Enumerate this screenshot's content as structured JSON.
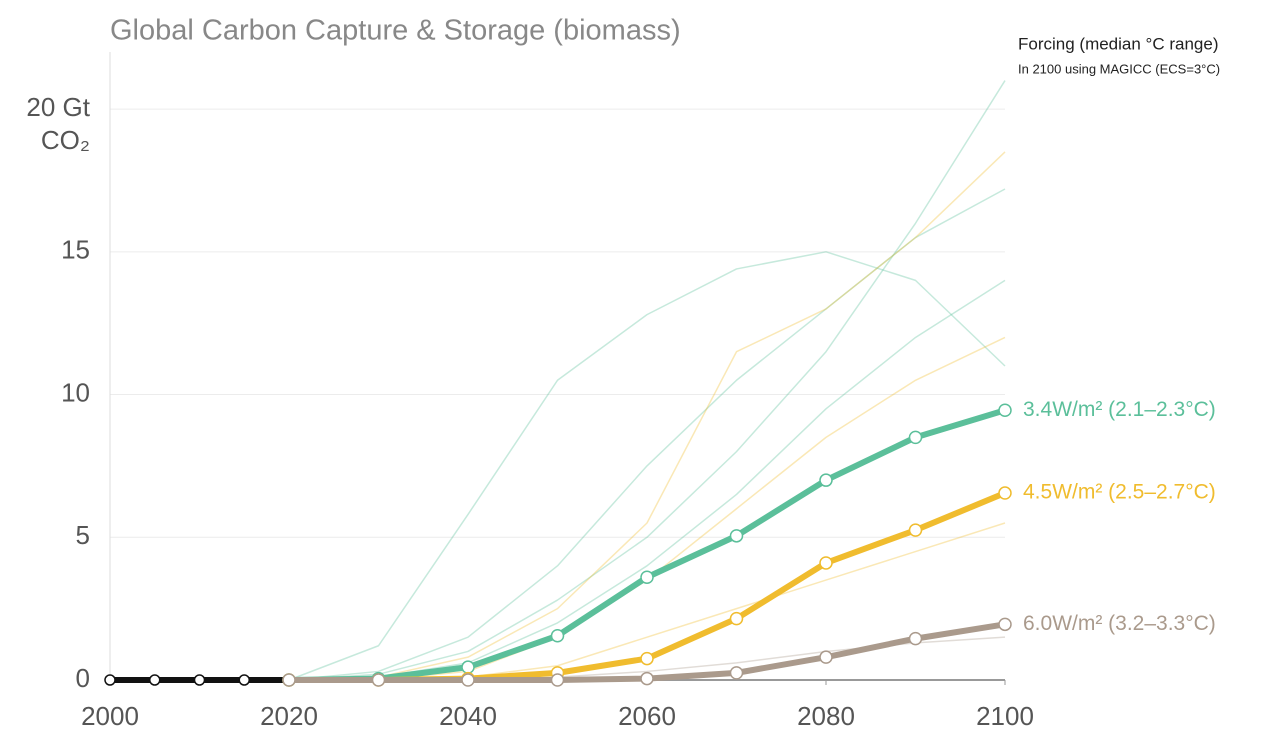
{
  "chart_data": {
    "type": "line",
    "title": "Global Carbon Capture & Storage (biomass)",
    "ylabel": "CO₂",
    "legend_title": "Forcing (median °C range)",
    "legend_subtitle": "In 2100 using MAGICC (ECS=3°C)",
    "x": [
      2000,
      2005,
      2010,
      2015,
      2020,
      2030,
      2040,
      2050,
      2060,
      2070,
      2080,
      2090,
      2100
    ],
    "xlim": [
      2000,
      2100
    ],
    "xticks": [
      2000,
      2020,
      2040,
      2060,
      2080,
      2100
    ],
    "ylim": [
      0,
      22
    ],
    "yticks": [
      0,
      5,
      10,
      15,
      {
        "value": 20,
        "label": "20 Gt"
      }
    ],
    "grid": true,
    "history": {
      "color": "#111111",
      "values": [
        0,
        0,
        0,
        0,
        0,
        null,
        null,
        null,
        null,
        null,
        null,
        null,
        null
      ]
    },
    "series": [
      {
        "name": "3.4W/m² (2.1–2.3°C)",
        "color": "#5bbf9a",
        "values": [
          null,
          null,
          null,
          null,
          0,
          0.05,
          0.45,
          1.55,
          3.6,
          5.05,
          7.0,
          8.5,
          9.45
        ]
      },
      {
        "name": "4.5W/m² (2.5–2.7°C)",
        "color": "#f0bc2e",
        "values": [
          null,
          null,
          null,
          null,
          0,
          0,
          0.05,
          0.25,
          0.75,
          2.15,
          4.1,
          5.25,
          6.55
        ]
      },
      {
        "name": "6.0W/m² (3.2–3.3°C)",
        "color": "#aa9a8c",
        "values": [
          null,
          null,
          null,
          null,
          0,
          0,
          0,
          0,
          0.05,
          0.25,
          0.8,
          1.45,
          1.95
        ]
      }
    ],
    "scenarios": [
      {
        "color": "#5bbf9a",
        "values": [
          null,
          null,
          null,
          null,
          0,
          1.2,
          5.8,
          10.5,
          12.8,
          14.4,
          15.0,
          14.0,
          11.0
        ]
      },
      {
        "color": "#5bbf9a",
        "values": [
          null,
          null,
          null,
          null,
          0,
          0.3,
          1.5,
          4.0,
          7.5,
          10.5,
          13.0,
          15.5,
          17.2
        ]
      },
      {
        "color": "#5bbf9a",
        "values": [
          null,
          null,
          null,
          null,
          0,
          0.2,
          1.0,
          2.8,
          5.0,
          8.0,
          11.5,
          16.0,
          21.0
        ]
      },
      {
        "color": "#f0bc2e",
        "values": [
          null,
          null,
          null,
          null,
          0,
          0.1,
          0.8,
          2.5,
          5.5,
          11.5,
          13.0,
          15.5,
          18.5
        ]
      },
      {
        "color": "#f0bc2e",
        "values": [
          null,
          null,
          null,
          null,
          0,
          0,
          0.3,
          1.5,
          3.5,
          6.0,
          8.5,
          10.5,
          12.0
        ]
      },
      {
        "color": "#5bbf9a",
        "values": [
          null,
          null,
          null,
          null,
          0,
          0.1,
          0.6,
          2.0,
          4.0,
          6.5,
          9.5,
          12.0,
          14.0
        ]
      },
      {
        "color": "#f0bc2e",
        "values": [
          null,
          null,
          null,
          null,
          0,
          0,
          0.1,
          0.5,
          1.5,
          2.5,
          3.5,
          4.5,
          5.5
        ]
      },
      {
        "color": "#aa9a8c",
        "values": [
          null,
          null,
          null,
          null,
          0,
          0,
          0,
          0.1,
          0.3,
          0.6,
          1.0,
          1.3,
          1.5
        ]
      }
    ]
  }
}
